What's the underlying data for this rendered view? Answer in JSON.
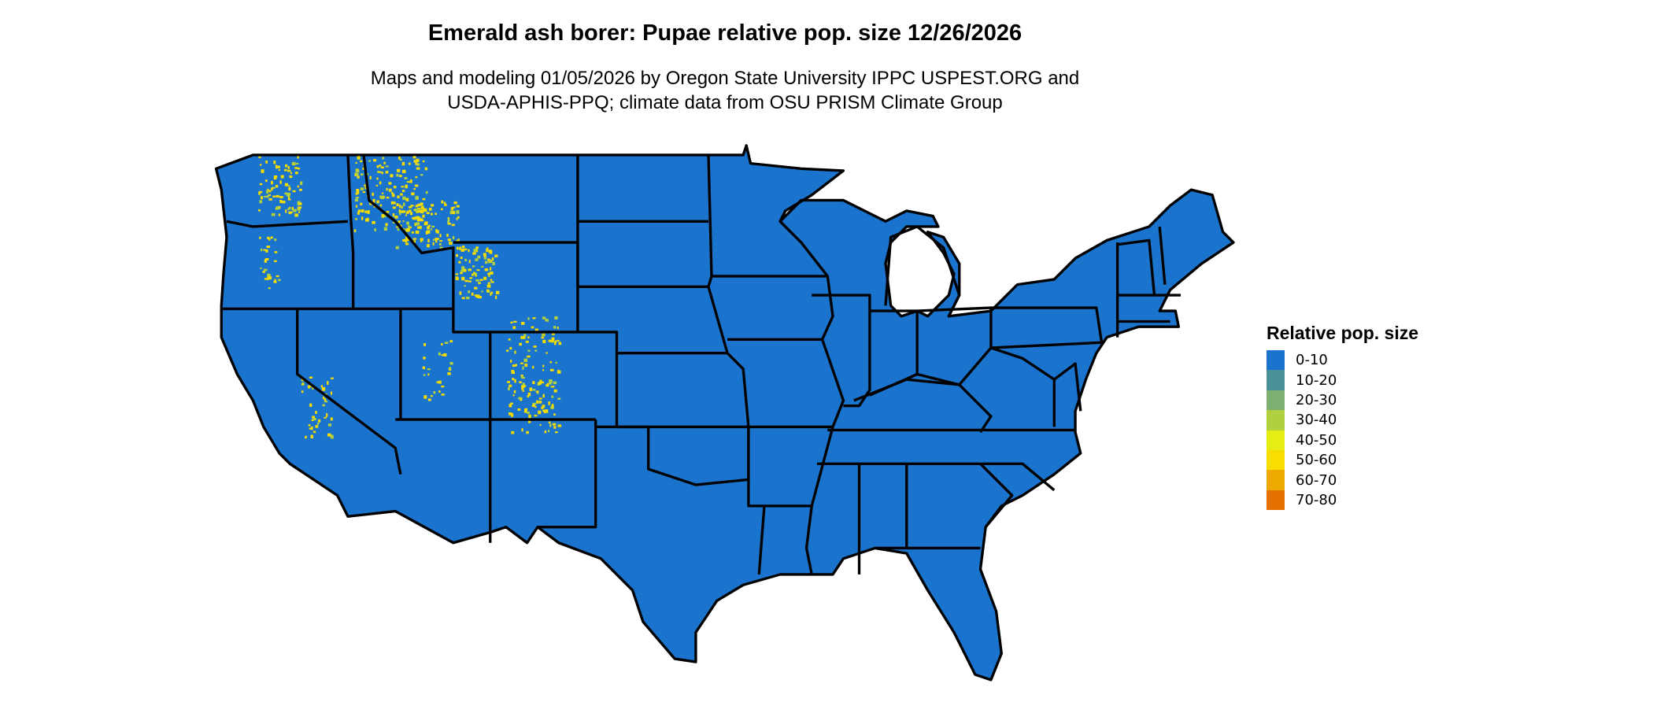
{
  "header": {
    "title": "Emerald ash borer: Pupae relative pop. size 12/26/2026",
    "subtitle_line1": "Maps and modeling 01/05/2026 by Oregon State University IPPC USPEST.ORG and",
    "subtitle_line2": "USDA-APHIS-PPQ; climate data from OSU PRISM Climate Group"
  },
  "map": {
    "region": "Contiguous United States",
    "base_color": "#1a73cc",
    "border_color": "#000000",
    "highlight_color": "#f5dc00"
  },
  "legend": {
    "title": "Relative pop. size",
    "items": [
      {
        "label": "0-10",
        "color": "#1a73cc"
      },
      {
        "label": "10-20",
        "color": "#4a9099"
      },
      {
        "label": "20-30",
        "color": "#7cb072"
      },
      {
        "label": "30-40",
        "color": "#b0d040"
      },
      {
        "label": "40-50",
        "color": "#e5ee14"
      },
      {
        "label": "50-60",
        "color": "#f8de00"
      },
      {
        "label": "60-70",
        "color": "#eeaa00"
      },
      {
        "label": "70-80",
        "color": "#e57200"
      }
    ]
  }
}
